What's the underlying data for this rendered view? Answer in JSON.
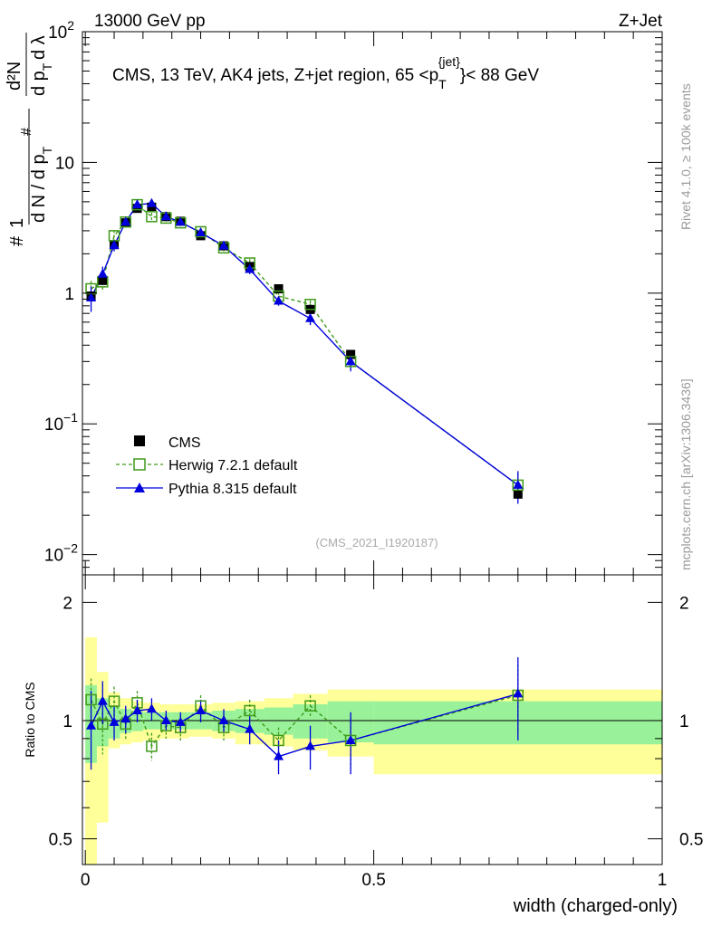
{
  "header": {
    "left": "13000 GeV pp",
    "right": "Z+Jet"
  },
  "side": {
    "rivet": "Rivet 4.1.0, ≥ 100k events",
    "mcplots": "mcplots.cern.ch [arXiv:1306.3436]"
  },
  "colors": {
    "cms": "#000000",
    "herwig": "#3f9a1a",
    "pythia": "#0000dd",
    "band_inner": "#99f299",
    "band_outer": "#ffff99"
  },
  "chart_data": [
    {
      "type": "line",
      "title": "CMS, 13 TeV, AK4 jets, Z+jet region, 65 <p_T^{jet}< 88 GeV",
      "title_parts": {
        "prefix": "CMS, 13 TeV, AK4 jets, Z+jet region, 65 <p",
        "sub": "T",
        "sup": "{jet}",
        "suffix": "}< 88 GeV"
      },
      "ylabel_parts": {
        "one": "1",
        "hash1": "#",
        "dN": "d N / d p",
        "T1": "T",
        "hash2": "#",
        "d2N": "d²N",
        "dpt": "d p",
        "T2": "T",
        "dl": "d λ"
      },
      "yscale": "log",
      "ylim": [
        0.007,
        100
      ],
      "ytick_labels": [
        {
          "v": 100,
          "base": "10",
          "exp": "2"
        },
        {
          "v": 10,
          "base": "10",
          "exp": ""
        },
        {
          "v": 1,
          "base": "1",
          "exp": ""
        },
        {
          "v": 0.1,
          "base": "10",
          "exp": "−1"
        },
        {
          "v": 0.01,
          "base": "10",
          "exp": "−2"
        }
      ],
      "watermark": "(CMS_2021_I1920187)",
      "legend_position": "lower-left",
      "x": [
        0.01,
        0.03,
        0.05,
        0.07,
        0.09,
        0.115,
        0.14,
        0.165,
        0.2,
        0.24,
        0.285,
        0.335,
        0.39,
        0.46,
        0.75
      ],
      "series": [
        {
          "name": "CMS",
          "marker": "square-filled",
          "values": [
            0.95,
            1.25,
            2.35,
            3.45,
            4.45,
            4.55,
            3.85,
            3.55,
            2.75,
            2.3,
            1.6,
            1.08,
            0.75,
            0.34,
            0.029
          ]
        },
        {
          "name": "Herwig 7.2.1 default",
          "marker": "square-open",
          "linestyle": "dashed",
          "values": [
            1.08,
            1.22,
            2.75,
            3.5,
            4.75,
            3.85,
            3.75,
            3.45,
            2.95,
            2.22,
            1.7,
            0.95,
            0.82,
            0.3,
            0.034
          ]
        },
        {
          "name": "Pythia 8.315 default",
          "marker": "triangle",
          "linestyle": "solid",
          "values": [
            0.92,
            1.4,
            2.32,
            3.5,
            4.75,
            4.85,
            3.85,
            3.5,
            2.9,
            2.3,
            1.52,
            0.87,
            0.64,
            0.3,
            0.034
          ]
        }
      ]
    },
    {
      "type": "line",
      "title": "",
      "xlabel": "width (charged-only)",
      "ylabel": "Ratio to CMS",
      "yscale": "log",
      "ylim": [
        0.43,
        2.35
      ],
      "xlim": [
        -0.005,
        1.0
      ],
      "xtick_labels": [
        {
          "v": 0,
          "label": "0"
        },
        {
          "v": 0.5,
          "label": "0.5"
        },
        {
          "v": 1,
          "label": "1"
        }
      ],
      "ytick_labels": [
        {
          "v": 2,
          "label": "2"
        },
        {
          "v": 1,
          "label": "1"
        },
        {
          "v": 0.5,
          "label": "0.5"
        }
      ],
      "bins": [
        {
          "lo": 0.0,
          "hi": 0.02,
          "inner": [
            0.78,
            1.23
          ],
          "outer": [
            0.43,
            1.63
          ]
        },
        {
          "lo": 0.02,
          "hi": 0.04,
          "inner": [
            0.86,
            1.14
          ],
          "outer": [
            0.55,
            1.33
          ]
        },
        {
          "lo": 0.04,
          "hi": 0.06,
          "inner": [
            0.9,
            1.09
          ],
          "outer": [
            0.85,
            1.18
          ]
        },
        {
          "lo": 0.06,
          "hi": 0.08,
          "inner": [
            0.93,
            1.07
          ],
          "outer": [
            0.87,
            1.14
          ]
        },
        {
          "lo": 0.08,
          "hi": 0.1,
          "inner": [
            0.94,
            1.06
          ],
          "outer": [
            0.88,
            1.12
          ]
        },
        {
          "lo": 0.1,
          "hi": 0.13,
          "inner": [
            0.95,
            1.05
          ],
          "outer": [
            0.89,
            1.11
          ]
        },
        {
          "lo": 0.13,
          "hi": 0.15,
          "inner": [
            0.95,
            1.05
          ],
          "outer": [
            0.9,
            1.1
          ]
        },
        {
          "lo": 0.15,
          "hi": 0.18,
          "inner": [
            0.95,
            1.05
          ],
          "outer": [
            0.9,
            1.1
          ]
        },
        {
          "lo": 0.18,
          "hi": 0.22,
          "inner": [
            0.95,
            1.05
          ],
          "outer": [
            0.91,
            1.1
          ]
        },
        {
          "lo": 0.22,
          "hi": 0.26,
          "inner": [
            0.94,
            1.06
          ],
          "outer": [
            0.9,
            1.11
          ]
        },
        {
          "lo": 0.26,
          "hi": 0.31,
          "inner": [
            0.93,
            1.07
          ],
          "outer": [
            0.87,
            1.12
          ]
        },
        {
          "lo": 0.31,
          "hi": 0.36,
          "inner": [
            0.92,
            1.08
          ],
          "outer": [
            0.86,
            1.14
          ]
        },
        {
          "lo": 0.36,
          "hi": 0.42,
          "inner": [
            0.9,
            1.1
          ],
          "outer": [
            0.84,
            1.17
          ]
        },
        {
          "lo": 0.42,
          "hi": 0.5,
          "inner": [
            0.88,
            1.12
          ],
          "outer": [
            0.81,
            1.2
          ]
        },
        {
          "lo": 0.5,
          "hi": 1.0,
          "inner": [
            0.87,
            1.12
          ],
          "outer": [
            0.73,
            1.2
          ]
        }
      ],
      "series": [
        {
          "name": "Herwig 7.2.1 default",
          "values": [
            1.13,
            0.98,
            1.12,
            0.98,
            1.11,
            0.86,
            0.97,
            0.96,
            1.09,
            0.96,
            1.06,
            0.89,
            1.09,
            0.89,
            1.16
          ],
          "errors": [
            0.15,
            0.16,
            0.1,
            0.09,
            0.08,
            0.07,
            0.07,
            0.07,
            0.07,
            0.07,
            0.07,
            0.07,
            0.07,
            0.13,
            0.23
          ]
        },
        {
          "name": "Pythia 8.315 default",
          "values": [
            0.97,
            1.12,
            0.99,
            1.01,
            1.06,
            1.07,
            1.0,
            0.99,
            1.06,
            1.0,
            0.95,
            0.81,
            0.86,
            0.89,
            1.17
          ],
          "errors": [
            0.22,
            0.14,
            0.1,
            0.08,
            0.07,
            0.07,
            0.06,
            0.06,
            0.07,
            0.07,
            0.08,
            0.08,
            0.11,
            0.16,
            0.28
          ]
        }
      ]
    }
  ]
}
